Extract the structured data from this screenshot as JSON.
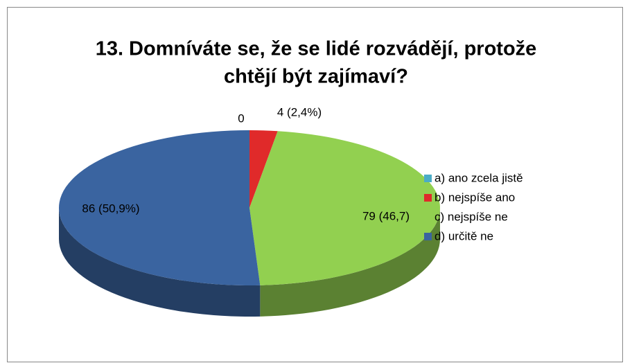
{
  "chart_data": {
    "type": "pie",
    "title": [
      "13. Domníváte se, že se lidé rozvádějí, protože",
      "chtějí být zajímaví?"
    ],
    "categories": [
      "a) ano zcela jistě",
      "b) nejspíše ano",
      "c) nejspíše ne",
      "d) určitě ne"
    ],
    "values": [
      0,
      4,
      79,
      86
    ],
    "value_labels": [
      "0",
      "4 (2,4%)",
      "79 (46,7)",
      "86 (50,9%)"
    ],
    "colors": [
      "#4bacc6",
      "#e02a2a",
      "#92d050",
      "#3a64a0"
    ],
    "legend": "right"
  }
}
